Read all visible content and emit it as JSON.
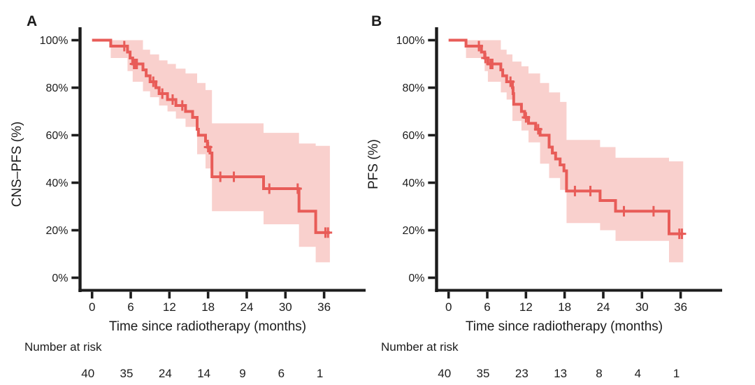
{
  "styles": {
    "background": "#ffffff",
    "curve_color": "#e85c58",
    "band_color": "#f9d0cd",
    "axis_color": "#1c1c1c",
    "text_color": "#1c1c1c"
  },
  "chart_data": [
    {
      "type": "line",
      "variant": "kaplan-meier-survival",
      "panel_label": "A",
      "ylabel": "CNS–PFS (%)",
      "xlabel": "Time since radiotherapy (months)",
      "x_ticks": [
        0,
        6,
        12,
        18,
        24,
        30,
        36
      ],
      "x_tick_labels": [
        "0",
        "6",
        "12",
        "18",
        "24",
        "30",
        "36"
      ],
      "y_ticks": [
        100,
        80,
        60,
        40,
        20,
        0
      ],
      "y_tick_labels": [
        "100%",
        "80%",
        "60%",
        "40%",
        "20%",
        "0%"
      ],
      "xlim": [
        0,
        38.5
      ],
      "ylim": [
        0,
        105
      ],
      "grid": false,
      "legend": false,
      "curve_end_month": 36.9,
      "survival_steps_pct": [
        [
          0,
          100
        ],
        [
          2.9,
          97.5
        ],
        [
          5.5,
          95
        ],
        [
          5.9,
          92.5
        ],
        [
          6.3,
          90
        ],
        [
          7.9,
          87.5
        ],
        [
          8.4,
          85
        ],
        [
          9,
          82.5
        ],
        [
          9.9,
          80
        ],
        [
          10.4,
          77.5
        ],
        [
          11.7,
          75
        ],
        [
          13,
          72.5
        ],
        [
          14.5,
          70
        ],
        [
          15.6,
          67.5
        ],
        [
          16.3,
          62.5
        ],
        [
          16.5,
          60
        ],
        [
          17.6,
          57.5
        ],
        [
          17.9,
          55
        ],
        [
          18.3,
          52.5
        ],
        [
          18.6,
          42.5
        ],
        [
          26.6,
          37.5
        ],
        [
          32.1,
          28
        ],
        [
          34.7,
          19
        ],
        [
          36.9,
          19
        ]
      ],
      "censor_marks_pct": [
        [
          5,
          97.5
        ],
        [
          6.5,
          90
        ],
        [
          6.7,
          90
        ],
        [
          6.95,
          90
        ],
        [
          9.5,
          82.5
        ],
        [
          10.9,
          77.5
        ],
        [
          12.5,
          75
        ],
        [
          14,
          72.5
        ],
        [
          18,
          55
        ],
        [
          19.9,
          42.5
        ],
        [
          22,
          42.5
        ],
        [
          27.5,
          37.5
        ],
        [
          31.9,
          37.5
        ],
        [
          36.2,
          19
        ],
        [
          36.6,
          19
        ]
      ],
      "ci_band_pct": [
        [
          2.9,
          100,
          92.5
        ],
        [
          5.5,
          100,
          87
        ],
        [
          6.3,
          100,
          82.5
        ],
        [
          7.9,
          96,
          78.5
        ],
        [
          9,
          94,
          76
        ],
        [
          10.4,
          91.5,
          72.5
        ],
        [
          11.7,
          90,
          70
        ],
        [
          13,
          88,
          67
        ],
        [
          14.5,
          86,
          63.5
        ],
        [
          16.3,
          82,
          52
        ],
        [
          17.6,
          79,
          46
        ],
        [
          18.6,
          65,
          28
        ],
        [
          26.6,
          61,
          22.5
        ],
        [
          32.1,
          56.5,
          13
        ],
        [
          34.7,
          55.5,
          6.5
        ]
      ],
      "risk_table": {
        "label": "Number at risk",
        "times": [
          0,
          6,
          12,
          18,
          24,
          30,
          36
        ],
        "counts": [
          "40",
          "35",
          "24",
          "14",
          "9",
          "6",
          "1"
        ]
      }
    },
    {
      "type": "line",
      "variant": "kaplan-meier-survival",
      "panel_label": "B",
      "ylabel": "PFS (%)",
      "xlabel": "Time since radiotherapy (months)",
      "x_ticks": [
        0,
        6,
        12,
        18,
        24,
        30,
        36
      ],
      "x_tick_labels": [
        "0",
        "6",
        "12",
        "18",
        "24",
        "30",
        "36"
      ],
      "y_ticks": [
        100,
        80,
        60,
        40,
        20,
        0
      ],
      "y_tick_labels": [
        "100%",
        "80%",
        "60%",
        "40%",
        "20%",
        "0%"
      ],
      "xlim": [
        0,
        38.5
      ],
      "ylim": [
        0,
        105
      ],
      "grid": false,
      "legend": false,
      "curve_end_month": 36.4,
      "survival_steps_pct": [
        [
          0,
          100
        ],
        [
          2.7,
          97.5
        ],
        [
          5.1,
          95
        ],
        [
          5.6,
          92.5
        ],
        [
          6.1,
          90
        ],
        [
          8.1,
          87.5
        ],
        [
          8.4,
          85
        ],
        [
          9,
          82.5
        ],
        [
          9.9,
          80
        ],
        [
          10,
          77.5
        ],
        [
          10.1,
          73
        ],
        [
          11.3,
          70
        ],
        [
          11.8,
          67.5
        ],
        [
          12.4,
          65
        ],
        [
          13.5,
          62.5
        ],
        [
          14.2,
          60
        ],
        [
          15.6,
          55
        ],
        [
          16.1,
          52.5
        ],
        [
          16.6,
          50
        ],
        [
          17.3,
          47.5
        ],
        [
          17.9,
          45
        ],
        [
          18.3,
          36.5
        ],
        [
          23.5,
          32.5
        ],
        [
          25.9,
          28
        ],
        [
          34.2,
          18.5
        ],
        [
          36.4,
          18.5
        ]
      ],
      "censor_marks_pct": [
        [
          4.7,
          97.5
        ],
        [
          5.7,
          92.5
        ],
        [
          6.5,
          90
        ],
        [
          6.8,
          90
        ],
        [
          9.6,
          82.5
        ],
        [
          12,
          67.5
        ],
        [
          13.9,
          62.5
        ],
        [
          19.6,
          36.5
        ],
        [
          22,
          36.5
        ],
        [
          27.2,
          28
        ],
        [
          31.8,
          28
        ],
        [
          35.8,
          18.5
        ],
        [
          36.2,
          18.5
        ]
      ],
      "ci_band_pct": [
        [
          2.7,
          100,
          92.5
        ],
        [
          5.6,
          100,
          87
        ],
        [
          6.1,
          100,
          82.5
        ],
        [
          8.1,
          96,
          78
        ],
        [
          9,
          94,
          75
        ],
        [
          9.9,
          91,
          66
        ],
        [
          11.3,
          89,
          62
        ],
        [
          12.4,
          86,
          57
        ],
        [
          14.2,
          82,
          48
        ],
        [
          15.6,
          78,
          42
        ],
        [
          17.3,
          74,
          37
        ],
        [
          18.3,
          58,
          23
        ],
        [
          23.5,
          55,
          20
        ],
        [
          25.9,
          50.5,
          15.5
        ],
        [
          34.2,
          49,
          6.5
        ]
      ],
      "risk_table": {
        "label": "Number at risk",
        "times": [
          0,
          6,
          12,
          18,
          24,
          30,
          36
        ],
        "counts": [
          "40",
          "35",
          "23",
          "13",
          "8",
          "4",
          "1"
        ]
      }
    }
  ]
}
